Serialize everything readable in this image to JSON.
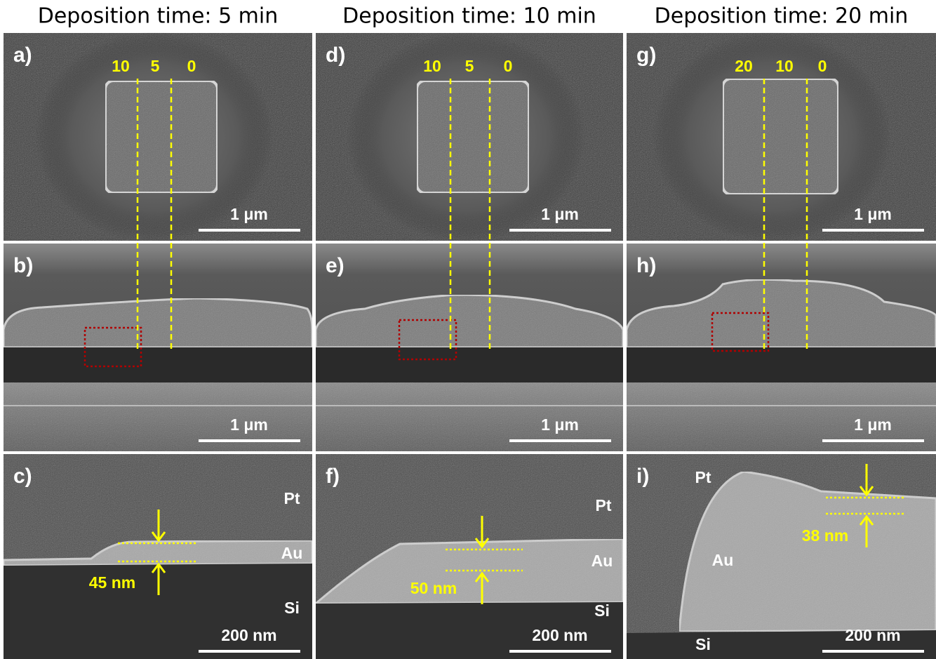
{
  "columns": [
    {
      "title": "Deposition time: 5 min",
      "panels": [
        {
          "label": "a)",
          "markers": [
            "10",
            "5",
            "0"
          ],
          "scale_bar": "1 μm"
        },
        {
          "label": "b)",
          "scale_bar": "1 μm"
        },
        {
          "label": "c)",
          "scale_bar": "200 nm",
          "layers": [
            "Pt",
            "Au",
            "Si"
          ],
          "thickness": "45 nm"
        }
      ]
    },
    {
      "title": "Deposition time: 10 min",
      "panels": [
        {
          "label": "d)",
          "markers": [
            "10",
            "5",
            "0"
          ],
          "scale_bar": "1 μm"
        },
        {
          "label": "e)",
          "scale_bar": "1 μm"
        },
        {
          "label": "f)",
          "scale_bar": "200 nm",
          "layers": [
            "Pt",
            "Au",
            "Si"
          ],
          "thickness": "50 nm"
        }
      ]
    },
    {
      "title": "Deposition time: 20 min",
      "panels": [
        {
          "label": "g)",
          "markers": [
            "20",
            "10",
            "0"
          ],
          "scale_bar": "1 μm"
        },
        {
          "label": "h)",
          "scale_bar": "1 μm"
        },
        {
          "label": "i)",
          "scale_bar": "200 nm",
          "layers": [
            "Pt",
            "Au",
            "Si"
          ],
          "thickness": "38 nm"
        }
      ]
    }
  ]
}
